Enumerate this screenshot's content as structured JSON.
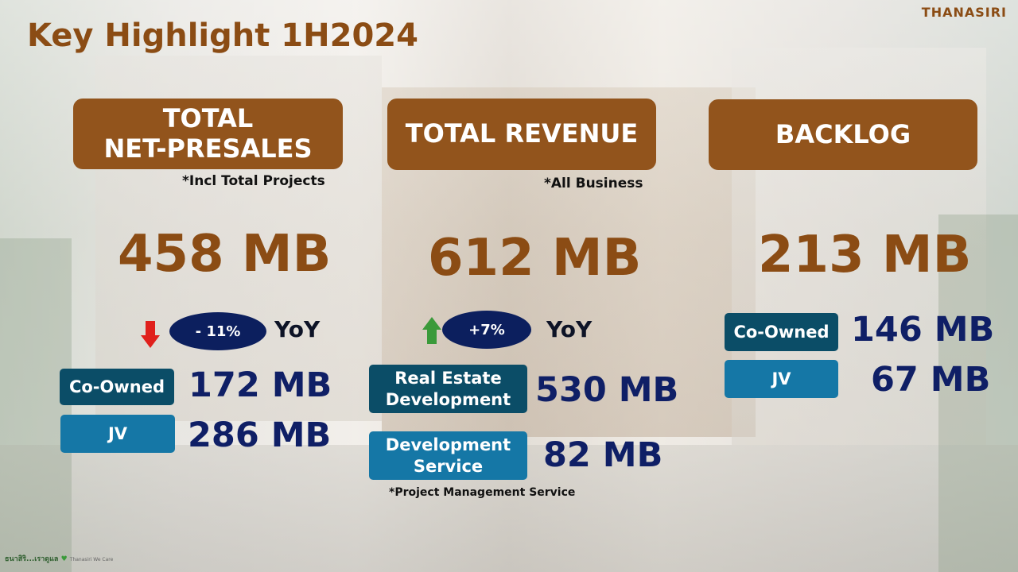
{
  "header": {
    "title": "Key Highlight 1H2024",
    "brand": "THANASIRI"
  },
  "presales": {
    "heading_line1": "TOTAL",
    "heading_line2": "NET-PRESALES",
    "note": "*Incl Total Projects",
    "total": "458 MB",
    "yoy_change": "- 11%",
    "yoy_label": "YoY",
    "trend": "down",
    "breakdown": [
      {
        "label": "Co-Owned",
        "value": "172 MB"
      },
      {
        "label": "JV",
        "value": "286 MB"
      }
    ]
  },
  "revenue": {
    "heading": "TOTAL REVENUE",
    "note": "*All Business",
    "total": "612 MB",
    "yoy_change": "+7%",
    "yoy_label": "YoY",
    "trend": "up",
    "breakdown": [
      {
        "label_line1": "Real Estate",
        "label_line2": "Development",
        "value": "530 MB"
      },
      {
        "label_line1": "Development",
        "label_line2": "Service",
        "value": "82 MB"
      }
    ],
    "footnote": "*Project Management Service"
  },
  "backlog": {
    "heading": "BACKLOG",
    "total": "213 MB",
    "breakdown": [
      {
        "label": "Co-Owned",
        "value": "146 MB"
      },
      {
        "label": "JV",
        "value": "67 MB"
      }
    ]
  },
  "footer": {
    "logo_text": "ธนาสิริ...เราดูแล",
    "logo_sub": "Thanasiri We Care"
  },
  "colors": {
    "brown": "#92541c",
    "navy": "#0c1f5e",
    "teal_dark": "#0b4d67",
    "teal_light": "#1577a6",
    "down_arrow": "#e0201c",
    "up_arrow": "#3a9a3a"
  }
}
